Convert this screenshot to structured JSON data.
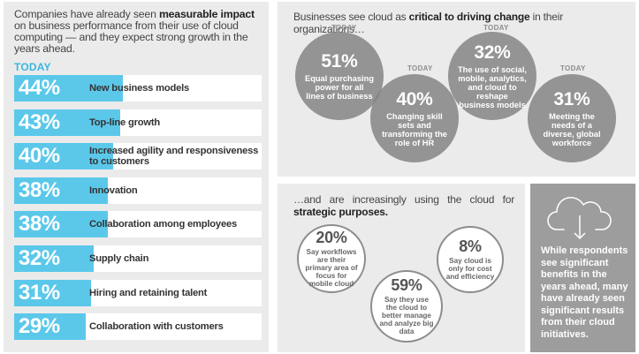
{
  "left": {
    "intro_pre": "Companies have already seen ",
    "intro_bold": "measurable impact",
    "intro_post": " on business performance from their use of cloud computing — and they expect strong growth in the years ahead.",
    "today": "TODAY"
  },
  "top_right": {
    "title_pre": "Businesses see cloud as ",
    "title_bold": "critical to driving change",
    "title_post": " in their organizations…",
    "today_tags": [
      "TODAY",
      "TODAY",
      "TODAY",
      "TODAY"
    ]
  },
  "bottom": {
    "title_pre": "…and are increasingly using the cloud for ",
    "title_bold": "strategic purposes."
  },
  "gray_panel": {
    "text": "While respondents see significant benefits in the years ahead, many have already seen significant results from their cloud initiatives."
  },
  "icons": {
    "cloud": "cloud-download-icon"
  },
  "colors": {
    "bar": "#5bc8ea",
    "accent": "#39b7e0",
    "circle": "#808080"
  },
  "chart_data": [
    {
      "type": "bar",
      "categories": [
        "New business models",
        "Top-line growth",
        "Increased agility and responsiveness to customers",
        "Innovation",
        "Collaboration among employees",
        "Supply chain",
        "Hiring and retaining talent",
        "Collaboration with customers"
      ],
      "values": [
        44,
        43,
        40,
        38,
        38,
        32,
        31,
        29
      ],
      "value_labels": [
        "44%",
        "43%",
        "40%",
        "38%",
        "38%",
        "32%",
        "31%",
        "29%"
      ]
    },
    {
      "type": "bubble",
      "items": [
        {
          "value": 51,
          "label": "51%",
          "text": "Equal purchasing power for all lines of business"
        },
        {
          "value": 40,
          "label": "40%",
          "text": "Changing skill sets and transforming the role of HR"
        },
        {
          "value": 32,
          "label": "32%",
          "text": "The use of social, mobile, analytics, and cloud to reshape business models"
        },
        {
          "value": 31,
          "label": "31%",
          "text": "Meeting the needs of a diverse, global workforce"
        }
      ]
    },
    {
      "type": "bubble",
      "items": [
        {
          "value": 20,
          "label": "20%",
          "text": "Say workflows are their primary area of focus for mobile cloud"
        },
        {
          "value": 59,
          "label": "59%",
          "text": "Say they use the cloud to better manage and analyze big data"
        },
        {
          "value": 8,
          "label": "8%",
          "text": "Say cloud is only for cost and efficiency"
        }
      ]
    }
  ]
}
